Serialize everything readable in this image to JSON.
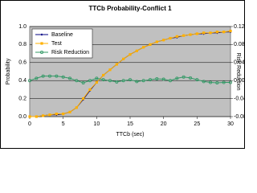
{
  "chart_data": {
    "type": "line",
    "title": "TTCb Probability-Conflict 1",
    "xlabel": "TTCb (sec)",
    "ylabel": "Probability",
    "y2label": "Risk Reduction",
    "x": [
      0,
      1,
      2,
      3,
      4,
      5,
      6,
      7,
      8,
      9,
      10,
      11,
      12,
      13,
      14,
      15,
      16,
      17,
      18,
      19,
      20,
      21,
      22,
      23,
      24,
      25,
      26,
      27,
      28,
      29,
      30
    ],
    "xlim": [
      0,
      30
    ],
    "xticks": [
      0,
      5,
      10,
      15,
      20,
      25,
      30
    ],
    "ylim": [
      0,
      1
    ],
    "yticks": [
      {
        "value": 0,
        "label": "0.0"
      },
      0.2,
      0.4,
      0.6,
      0.8,
      {
        "value": 1,
        "label": "1.0"
      }
    ],
    "y2lim": [
      -0.08,
      0.12
    ],
    "y2ticks": [
      -0.08,
      -0.04,
      {
        "value": 0,
        "label": "0.00"
      },
      0.04,
      0.08,
      0.12
    ],
    "legend": "upper left",
    "grid": true,
    "series": [
      {
        "name": "Baseline",
        "color": "#000080",
        "marker": "diamond",
        "values": [
          0,
          0,
          0.01,
          0.02,
          0.02,
          0.03,
          0.05,
          0.1,
          0.19,
          0.29,
          0.38,
          0.46,
          0.52,
          0.58,
          0.64,
          0.69,
          0.73,
          0.77,
          0.8,
          0.83,
          0.85,
          0.87,
          0.88,
          0.9,
          0.91,
          0.92,
          0.92,
          0.93,
          0.93,
          0.94,
          0.94
        ]
      },
      {
        "name": "Test",
        "color": "#ffb000",
        "marker": "square",
        "values": [
          0,
          0,
          0.01,
          0.02,
          0.03,
          0.03,
          0.05,
          0.1,
          0.2,
          0.3,
          0.38,
          0.46,
          0.52,
          0.58,
          0.64,
          0.69,
          0.73,
          0.77,
          0.8,
          0.83,
          0.85,
          0.87,
          0.89,
          0.9,
          0.91,
          0.92,
          0.93,
          0.93,
          0.94,
          0.94,
          0.95
        ]
      },
      {
        "name": "Risk Reduction",
        "color": "#339966",
        "marker": "circle",
        "axis": "y2",
        "values": [
          0,
          0.005,
          0.01,
          0.01,
          0.01,
          0.008,
          0.005,
          0,
          -0.005,
          0,
          0.005,
          0.002,
          0,
          -0.003,
          0,
          0.002,
          -0.002,
          0,
          0.002,
          0.004,
          0.003,
          0,
          0.005,
          0.008,
          0.006,
          0.002,
          -0.002,
          -0.004,
          -0.005,
          -0.004,
          -0.004
        ]
      }
    ]
  }
}
